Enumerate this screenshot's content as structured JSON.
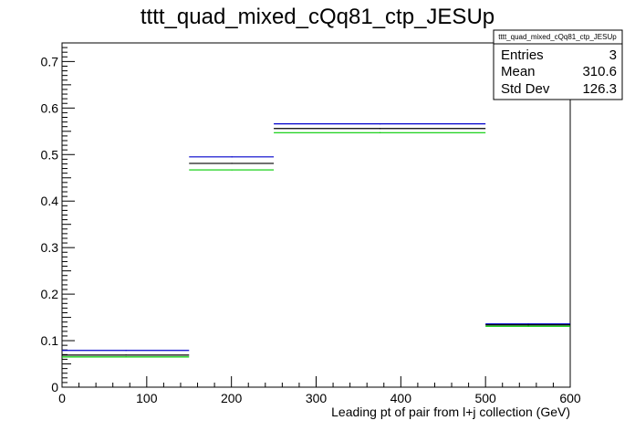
{
  "chart_data": {
    "type": "line",
    "title": "tttt_quad_mixed_cQq81_ctp_JESUp",
    "xlabel": "Leading pt of pair from l+j collection (GeV)",
    "ylabel": "",
    "xlim": [
      0,
      600
    ],
    "ylim": [
      0,
      0.74
    ],
    "x_ticks": [
      "0",
      "100",
      "200",
      "300",
      "400",
      "500",
      "600"
    ],
    "y_ticks": [
      "0",
      "0.1",
      "0.2",
      "0.3",
      "0.4",
      "0.5",
      "0.6",
      "0.7"
    ],
    "bin_edges": [
      0,
      150,
      250,
      500,
      600
    ],
    "series": [
      {
        "color": "#0000cc",
        "values": [
          0.079,
          0.495,
          0.566,
          0.136
        ]
      },
      {
        "color": "#000000",
        "values": [
          0.069,
          0.481,
          0.556,
          0.134
        ]
      },
      {
        "color": "#00cc00",
        "values": [
          0.065,
          0.467,
          0.547,
          0.131
        ]
      }
    ],
    "grid": false,
    "legend": "none"
  },
  "stats_box": {
    "title": "tttt_quad_mixed_cQq81_ctp_JESUp",
    "rows": [
      {
        "label": "Entries",
        "value": "3"
      },
      {
        "label": "Mean",
        "value": "310.6"
      },
      {
        "label": "Std Dev",
        "value": "126.3"
      }
    ]
  }
}
